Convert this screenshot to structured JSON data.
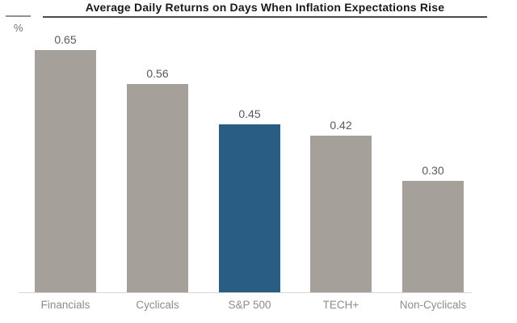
{
  "chart_data": {
    "type": "bar",
    "title": "Average Daily Returns on Days When Inflation Expectations Rise",
    "unit_label": "%",
    "categories": [
      "Financials",
      "Cyclicals",
      "S&P 500",
      "TECH+",
      "Non-Cyclicals"
    ],
    "values": [
      0.65,
      0.56,
      0.45,
      0.42,
      0.3
    ],
    "value_labels": [
      "0.65",
      "0.56",
      "0.45",
      "0.42",
      "0.30"
    ],
    "highlight_category": "S&P 500",
    "highlight_index": 2,
    "colors": {
      "bar_default": "#a6a09a",
      "bar_highlight": "#295d84",
      "value_label_text": "#595959",
      "category_label_text": "#8c8c8c",
      "title_text": "#1a1a1a",
      "axis_line": "#d6d6d4"
    },
    "ylim": [
      0,
      0.7
    ],
    "grid": false,
    "legend": "none",
    "data_label_position": "above bars"
  }
}
